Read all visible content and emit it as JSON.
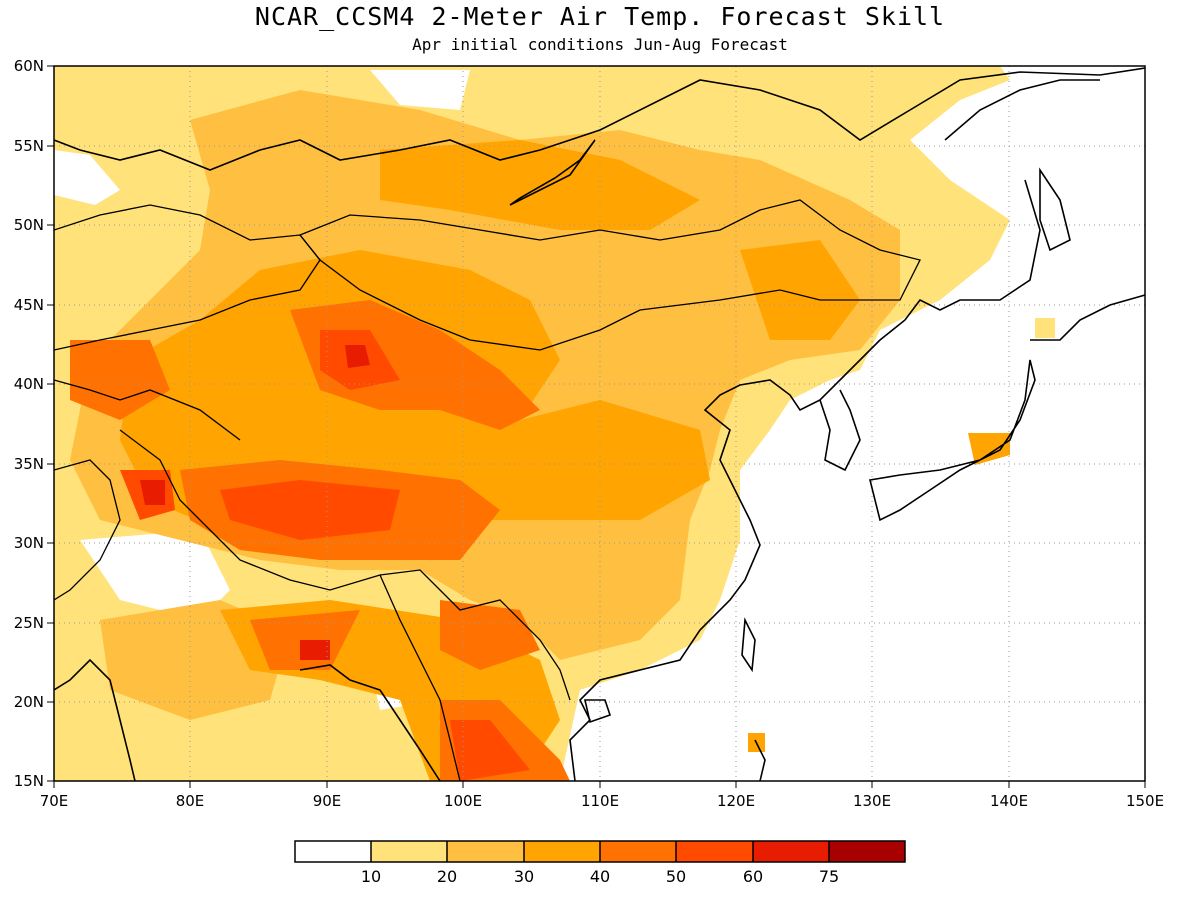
{
  "title": "NCAR_CCSM4 2-Meter Air Temp. Forecast Skill",
  "subtitle": "Apr initial conditions  Jun-Aug Forecast",
  "axes": {
    "lon_labels": [
      "70E",
      "80E",
      "90E",
      "100E",
      "110E",
      "120E",
      "130E",
      "140E",
      "150E"
    ],
    "lat_labels": [
      "15N",
      "20N",
      "25N",
      "30N",
      "35N",
      "40N",
      "45N",
      "50N",
      "55N",
      "60N"
    ],
    "lon_range": [
      70,
      150
    ],
    "lat_range": [
      15,
      60
    ],
    "grid": "dotted"
  },
  "colorbar": {
    "labels": [
      "10",
      "20",
      "30",
      "40",
      "50",
      "60",
      "75"
    ],
    "colors": [
      "#ffffff",
      "#ffe27a",
      "#ffbf40",
      "#ffa400",
      "#ff7100",
      "#ff4a00",
      "#e81c00",
      "#a80000"
    ]
  }
}
